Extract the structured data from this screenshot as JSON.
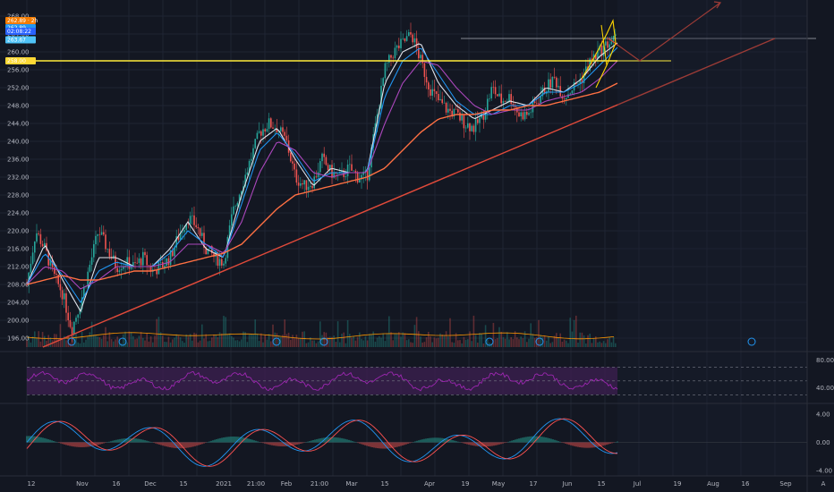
{
  "chart_data": {
    "type": "line",
    "colors": {
      "background": "#131722",
      "grid": "#1f2433",
      "up_candle": "#26a69a",
      "down_candle": "#ef5350",
      "ema_fast": "#e0e3eb",
      "ema_mid": "#2196f3",
      "ema_slow": "#ab47bc",
      "ema_long": "#ff7043",
      "resistance_line": "#ffeb3b",
      "trend_line": "#e04a3a",
      "rsi_line": "#9c27b0",
      "rsi_band": "#3b1f4f",
      "macd_line": "#2196f3",
      "signal_line": "#ff5252",
      "axis_text": "#b2b5be"
    },
    "price_axis": {
      "ticks": [
        "268.00",
        "264.00",
        "260.00",
        "256.00",
        "252.00",
        "248.00",
        "244.00",
        "240.00",
        "236.00",
        "232.00",
        "228.00",
        "224.00",
        "220.00",
        "216.00",
        "212.00",
        "208.00",
        "204.00",
        "200.00",
        "196.00"
      ],
      "ylim": [
        194,
        270
      ]
    },
    "price_tags": [
      {
        "label": "262.89",
        "suffix": "2h",
        "color": "#f57c00",
        "price": 267.0
      },
      {
        "label": "262.89",
        "suffix": "",
        "color": "#2196f3",
        "price": 265.4
      },
      {
        "label": "02:08:22",
        "suffix": "",
        "color": "#2962ff",
        "price": 264.6
      },
      {
        "label": "263.67",
        "suffix": "",
        "color": "#4fc3f7",
        "price": 262.7
      },
      {
        "label": "258.00",
        "suffix": "",
        "color": "#fdd835",
        "price": 258.0
      }
    ],
    "resistance_level": 258.0,
    "upper_level": 263.0,
    "x_axis_labels": [
      "12",
      "Nov",
      "16",
      "Dec",
      "15",
      "2021",
      "21:00",
      "Feb",
      "21:00",
      "Mar",
      "15",
      "Apr",
      "19",
      "May",
      "17",
      "Jun",
      "15",
      "Jul",
      "19",
      "Aug",
      "16",
      "Sep"
    ],
    "series": [
      {
        "name": "price",
        "x": [
          0,
          10,
          20,
          30,
          40,
          50,
          60,
          70,
          80,
          90,
          100,
          110,
          120,
          130,
          140,
          150,
          160,
          170,
          180,
          190,
          200,
          210,
          220,
          230,
          240,
          250,
          260,
          270,
          280,
          290,
          300,
          310,
          320,
          330,
          340,
          350,
          360,
          370,
          380,
          390,
          400,
          410,
          420,
          430,
          440,
          450,
          460,
          470,
          480,
          490,
          500,
          510,
          520,
          530,
          540,
          550,
          560,
          570,
          580,
          590,
          600,
          610,
          620,
          630,
          640,
          650,
          660
        ],
        "values": [
          208,
          220,
          216,
          210,
          206,
          198,
          204,
          212,
          220,
          216,
          212,
          213,
          212,
          214,
          211,
          212,
          214,
          219,
          223,
          221,
          216,
          214,
          213,
          224,
          230,
          236,
          242,
          244,
          243,
          240,
          232,
          230,
          231,
          236,
          233,
          232,
          234,
          232,
          232,
          244,
          256,
          260,
          262,
          264,
          258,
          252,
          249,
          247,
          246,
          244,
          243,
          246,
          252,
          249,
          250,
          246,
          246,
          249,
          252,
          254,
          250,
          252,
          254,
          258,
          260,
          262,
          263
        ]
      },
      {
        "name": "ema_fast",
        "x": [
          0,
          20,
          40,
          60,
          80,
          100,
          120,
          140,
          160,
          180,
          200,
          220,
          240,
          260,
          280,
          300,
          320,
          340,
          360,
          380,
          400,
          420,
          440,
          460,
          480,
          500,
          520,
          540,
          560,
          580,
          600,
          620,
          640,
          660
        ],
        "values": [
          208,
          217,
          209,
          202,
          214,
          214,
          212,
          212,
          216,
          222,
          216,
          214,
          228,
          240,
          243,
          236,
          230,
          234,
          233,
          233,
          253,
          260,
          262,
          253,
          248,
          245,
          247,
          249,
          248,
          252,
          251,
          254,
          259,
          262
        ]
      },
      {
        "name": "ema_mid",
        "x": [
          0,
          20,
          40,
          60,
          80,
          100,
          120,
          140,
          160,
          180,
          200,
          220,
          240,
          260,
          280,
          300,
          320,
          340,
          360,
          380,
          400,
          420,
          440,
          460,
          480,
          500,
          520,
          540,
          560,
          580,
          600,
          620,
          640,
          660
        ],
        "values": [
          208,
          215,
          210,
          204,
          211,
          213,
          212,
          212,
          215,
          220,
          217,
          214,
          226,
          238,
          242,
          237,
          231,
          233,
          233,
          233,
          250,
          258,
          261,
          255,
          249,
          246,
          246,
          248,
          248,
          251,
          251,
          253,
          257,
          261
        ]
      },
      {
        "name": "ema_slow",
        "x": [
          0,
          20,
          40,
          60,
          80,
          100,
          120,
          140,
          160,
          180,
          200,
          220,
          240,
          260,
          280,
          300,
          320,
          340,
          360,
          380,
          400,
          420,
          440,
          460,
          480,
          500,
          520,
          540,
          560,
          580,
          600,
          620,
          640,
          660
        ],
        "values": [
          208,
          212,
          211,
          207,
          209,
          212,
          212,
          212,
          213,
          217,
          217,
          215,
          222,
          233,
          240,
          238,
          233,
          232,
          233,
          233,
          244,
          253,
          258,
          257,
          252,
          248,
          246,
          247,
          247,
          249,
          250,
          251,
          254,
          258
        ]
      },
      {
        "name": "ema_long",
        "x": [
          0,
          20,
          40,
          60,
          80,
          100,
          120,
          140,
          160,
          180,
          200,
          220,
          240,
          260,
          280,
          300,
          320,
          340,
          360,
          380,
          400,
          420,
          440,
          460,
          480,
          500,
          520,
          540,
          560,
          580,
          600,
          620,
          640,
          660
        ],
        "values": [
          208,
          209,
          210,
          209,
          209,
          210,
          211,
          211,
          212,
          213,
          214,
          215,
          217,
          221,
          225,
          228,
          229,
          230,
          231,
          232,
          234,
          238,
          242,
          245,
          246,
          246,
          247,
          247,
          248,
          248,
          249,
          250,
          251,
          253
        ]
      }
    ],
    "trend_line": {
      "from": [
        18,
        194
      ],
      "to": [
        836,
        263
      ]
    },
    "projection": {
      "points": [
        [
          650,
          263
        ],
        [
          685,
          258
        ],
        [
          775,
          271
        ]
      ]
    },
    "rsi_axis": {
      "ticks": [
        "80.00",
        "40.00"
      ],
      "ylim": [
        20,
        90
      ],
      "band": [
        30,
        70
      ]
    },
    "macd_axis": {
      "ticks": [
        "4.00",
        "0.00",
        "-4.00"
      ],
      "ylim": [
        -4.5,
        5
      ]
    }
  }
}
